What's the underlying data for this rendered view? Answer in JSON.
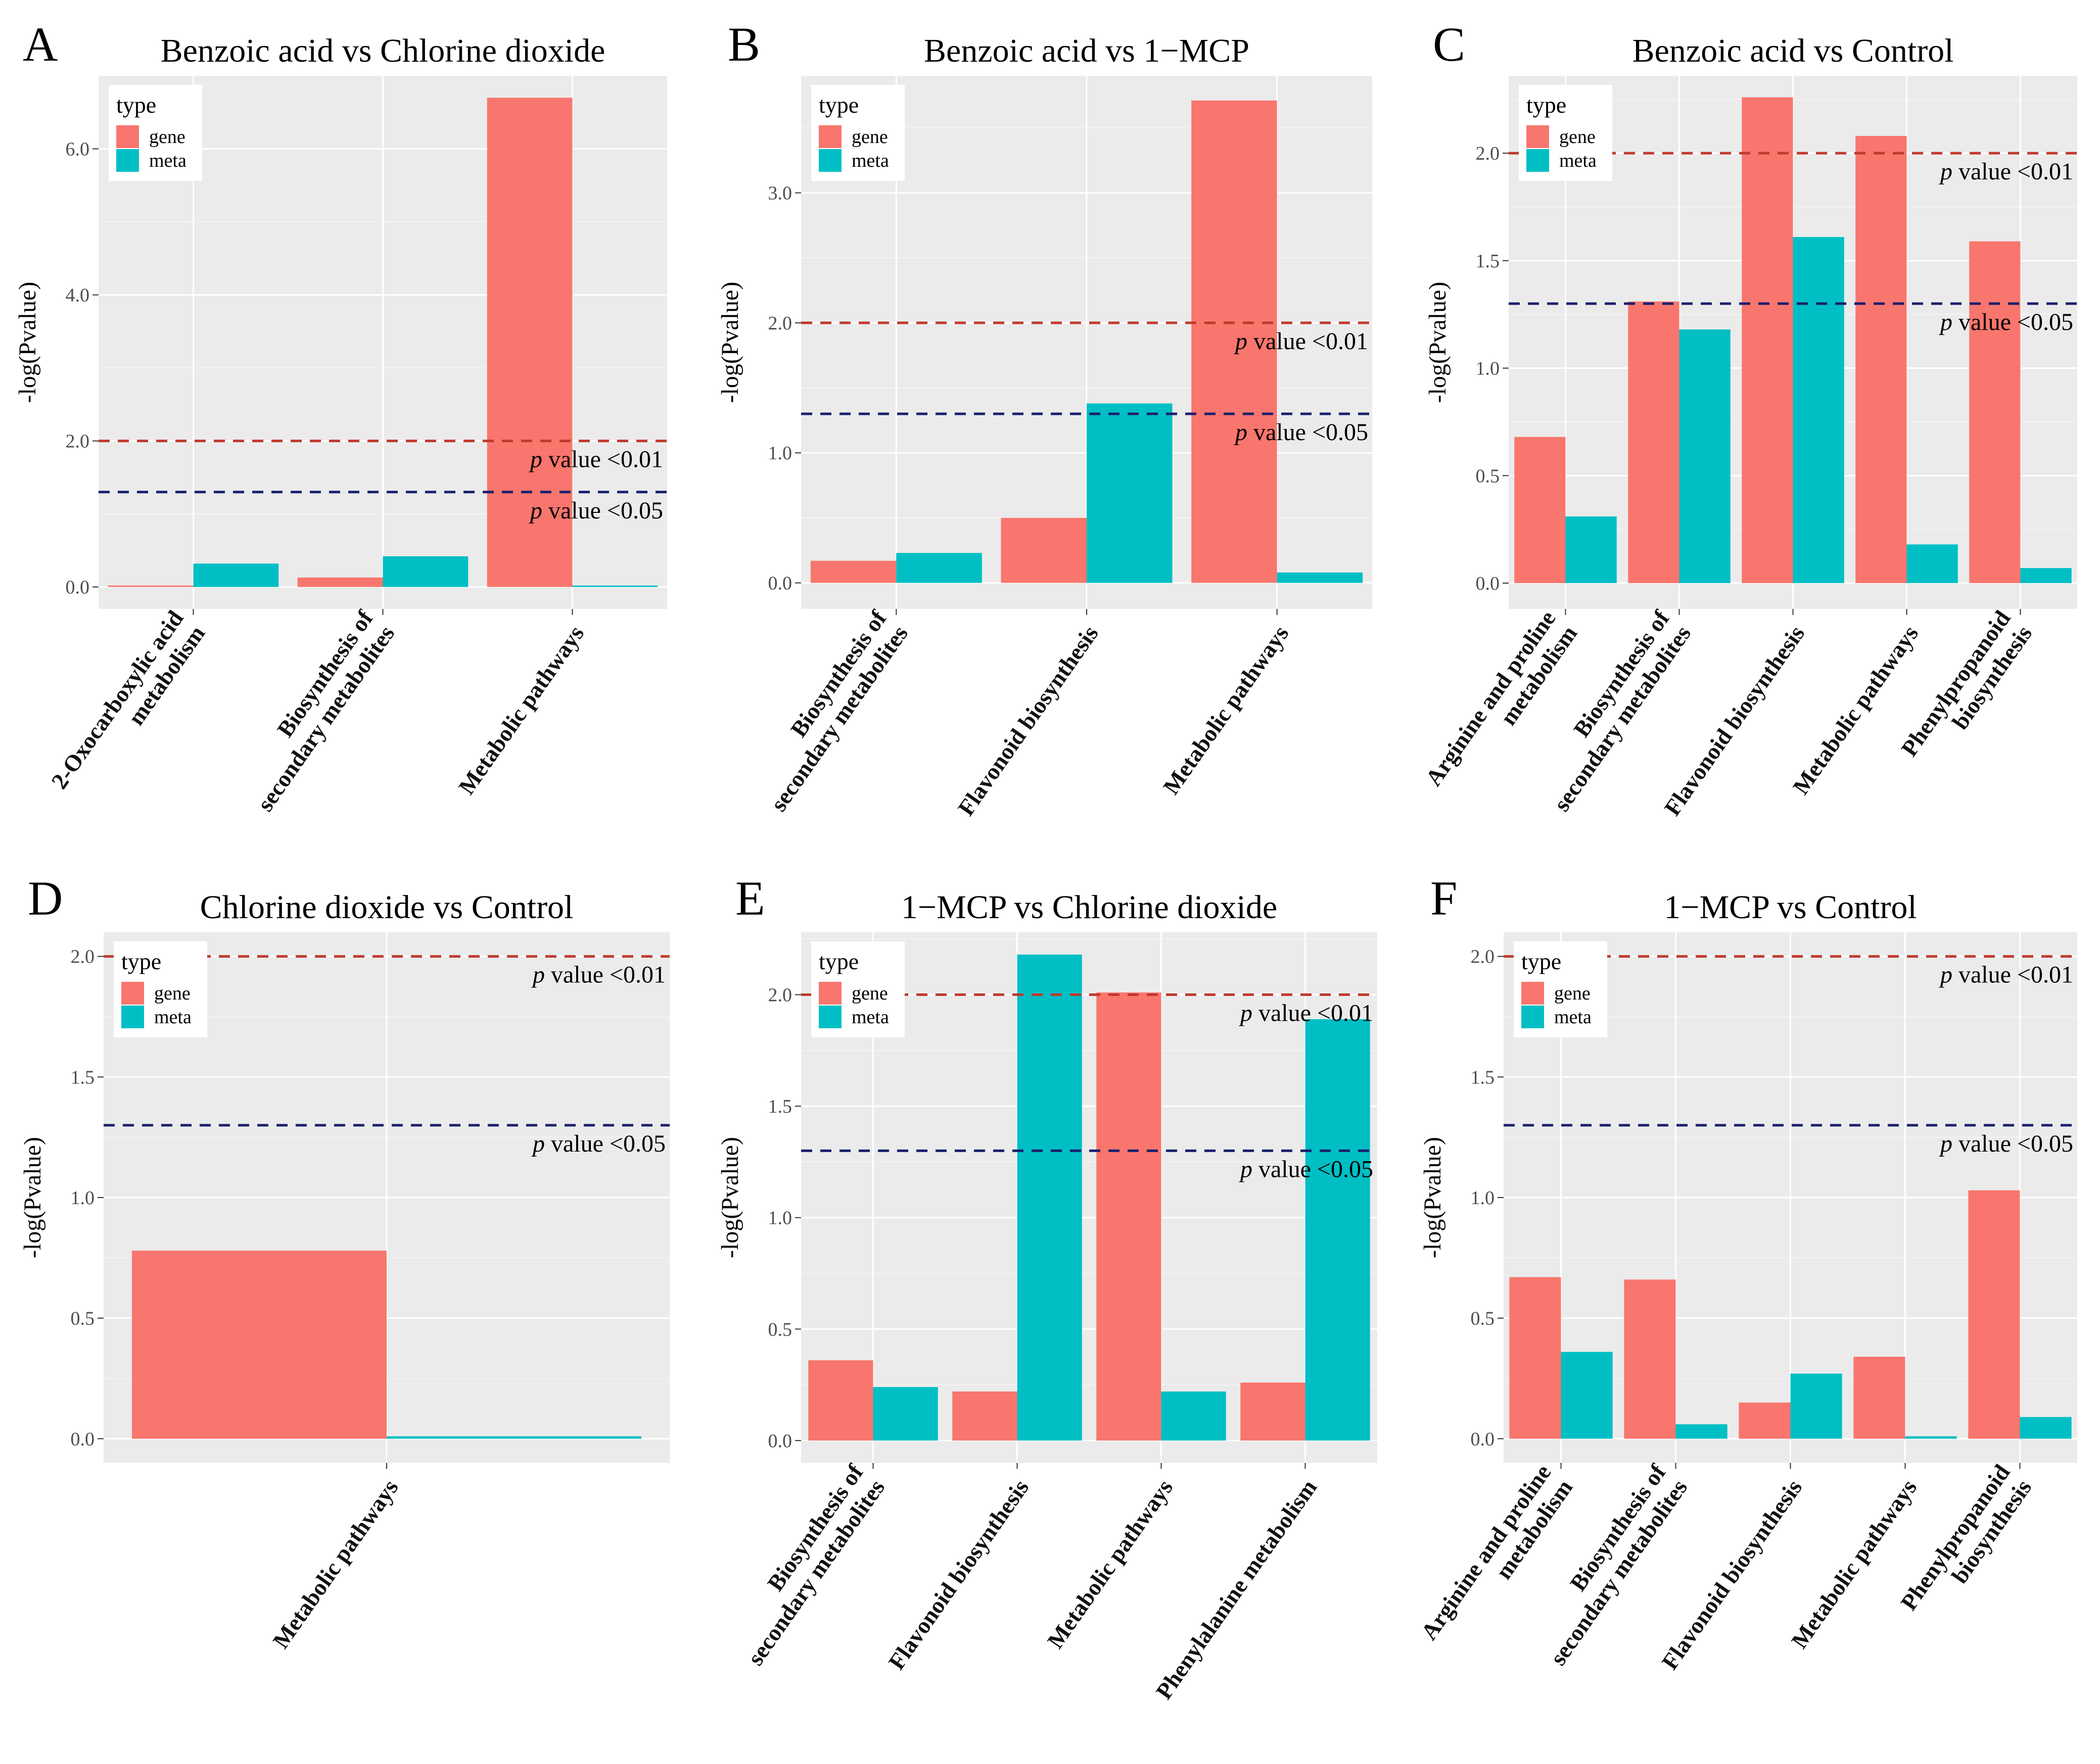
{
  "figure": {
    "colors": {
      "gene": "#F8766D",
      "meta": "#00BFC4",
      "p01": "#C0392B",
      "p05": "#1A1F6E"
    },
    "legend_title": "type",
    "y_axis_label": "-log(Pvalue)",
    "threshold_p01": 2.0,
    "threshold_p05": 1.3,
    "annotation_p01": {
      "p": "p",
      "rest": " value <0.01"
    },
    "annotation_p05": {
      "p": "p",
      "rest": " value <0.05"
    }
  },
  "chart_data": [
    {
      "type": "bar",
      "letter": "A",
      "title": "Benzoic acid vs Chlorine dioxide",
      "ylabel": "-log(Pvalue)",
      "ylim": [
        -0.3,
        7.0
      ],
      "yticks": [
        0,
        2,
        4,
        6
      ],
      "yticklabels": [
        "0.0",
        "2.0",
        "4.0",
        "6.0"
      ],
      "categories": [
        [
          "2-Oxocarboxylic acid",
          "metabolism"
        ],
        [
          "Biosynthesis of",
          "secondary metabolites"
        ],
        [
          "Metabolic pathways"
        ]
      ],
      "series": [
        {
          "name": "gene",
          "values": [
            0.02,
            0.13,
            6.7
          ]
        },
        {
          "name": "meta",
          "values": [
            0.32,
            0.42,
            0.02
          ]
        }
      ],
      "legend": {
        "title": "type",
        "entries": [
          "gene",
          "meta"
        ],
        "position": "top-left"
      }
    },
    {
      "type": "bar",
      "letter": "B",
      "title": "Benzoic acid vs 1−MCP",
      "ylabel": "-log(Pvalue)",
      "ylim": [
        -0.2,
        3.9
      ],
      "yticks": [
        0,
        1,
        2,
        3
      ],
      "yticklabels": [
        "0.0",
        "1.0",
        "2.0",
        "3.0"
      ],
      "categories": [
        [
          "Biosynthesis of",
          "secondary metabolites"
        ],
        [
          "Flavonoid biosynthesis"
        ],
        [
          "Metabolic pathways"
        ]
      ],
      "series": [
        {
          "name": "gene",
          "values": [
            0.17,
            0.5,
            3.71
          ]
        },
        {
          "name": "meta",
          "values": [
            0.23,
            1.38,
            0.08
          ]
        }
      ],
      "legend": {
        "title": "type",
        "entries": [
          "gene",
          "meta"
        ],
        "position": "top-left"
      }
    },
    {
      "type": "bar",
      "letter": "C",
      "title": "Benzoic acid vs Control",
      "ylabel": "-log(Pvalue)",
      "ylim": [
        -0.12,
        2.36
      ],
      "yticks": [
        0,
        0.5,
        1,
        1.5,
        2
      ],
      "yticklabels": [
        "0.0",
        "0.5",
        "1.0",
        "1.5",
        "2.0"
      ],
      "categories": [
        [
          "Arginine and proline",
          "metabolism"
        ],
        [
          "Biosynthesis of",
          "secondary metabolites"
        ],
        [
          "Flavonoid biosynthesis"
        ],
        [
          "Metabolic pathways"
        ],
        [
          "Phenylpropanoid",
          "biosynthesis"
        ]
      ],
      "series": [
        {
          "name": "gene",
          "values": [
            0.68,
            1.31,
            2.26,
            2.08,
            1.59
          ]
        },
        {
          "name": "meta",
          "values": [
            0.31,
            1.18,
            1.61,
            0.18,
            0.07
          ]
        }
      ],
      "legend": {
        "title": "type",
        "entries": [
          "gene",
          "meta"
        ],
        "position": "top-left"
      }
    },
    {
      "type": "bar",
      "letter": "D",
      "title": "Chlorine dioxide vs Control",
      "ylabel": "-log(Pvalue)",
      "ylim": [
        -0.1,
        2.1
      ],
      "yticks": [
        0,
        0.5,
        1,
        1.5,
        2
      ],
      "yticklabels": [
        "0.0",
        "0.5",
        "1.0",
        "1.5",
        "2.0"
      ],
      "categories": [
        [
          "Metabolic pathways"
        ]
      ],
      "series": [
        {
          "name": "gene",
          "values": [
            0.78
          ]
        },
        {
          "name": "meta",
          "values": [
            0.01
          ]
        }
      ],
      "legend": {
        "title": "type",
        "entries": [
          "gene",
          "meta"
        ],
        "position": "top-left"
      }
    },
    {
      "type": "bar",
      "letter": "E",
      "title": "1−MCP vs Chlorine dioxide",
      "ylabel": "-log(Pvalue)",
      "ylim": [
        -0.1,
        2.28
      ],
      "yticks": [
        0,
        0.5,
        1,
        1.5,
        2
      ],
      "yticklabels": [
        "0.0",
        "0.5",
        "1.0",
        "1.5",
        "2.0"
      ],
      "categories": [
        [
          "Biosynthesis of",
          "secondary metabolites"
        ],
        [
          "Flavonoid biosynthesis"
        ],
        [
          "Metabolic pathways"
        ],
        [
          "Phenylalanine metabolism"
        ]
      ],
      "series": [
        {
          "name": "gene",
          "values": [
            0.36,
            0.22,
            2.01,
            0.26
          ]
        },
        {
          "name": "meta",
          "values": [
            0.24,
            2.18,
            0.22,
            1.89
          ]
        }
      ],
      "legend": {
        "title": "type",
        "entries": [
          "gene",
          "meta"
        ],
        "position": "top-left"
      }
    },
    {
      "type": "bar",
      "letter": "F",
      "title": "1−MCP vs Control",
      "ylabel": "-log(Pvalue)",
      "ylim": [
        -0.1,
        2.1
      ],
      "yticks": [
        0,
        0.5,
        1,
        1.5,
        2
      ],
      "yticklabels": [
        "0.0",
        "0.5",
        "1.0",
        "1.5",
        "2.0"
      ],
      "categories": [
        [
          "Arginine and proline",
          "metabolism"
        ],
        [
          "Biosynthesis of",
          "secondary metabolites"
        ],
        [
          "Flavonoid biosynthesis"
        ],
        [
          "Metabolic pathways"
        ],
        [
          "Phenylpropanoid",
          "biosynthesis"
        ]
      ],
      "series": [
        {
          "name": "gene",
          "values": [
            0.67,
            0.66,
            0.15,
            0.34,
            1.03
          ]
        },
        {
          "name": "meta",
          "values": [
            0.36,
            0.06,
            0.27,
            0.01,
            0.09
          ]
        }
      ],
      "legend": {
        "title": "type",
        "entries": [
          "gene",
          "meta"
        ],
        "position": "top-left"
      }
    }
  ]
}
